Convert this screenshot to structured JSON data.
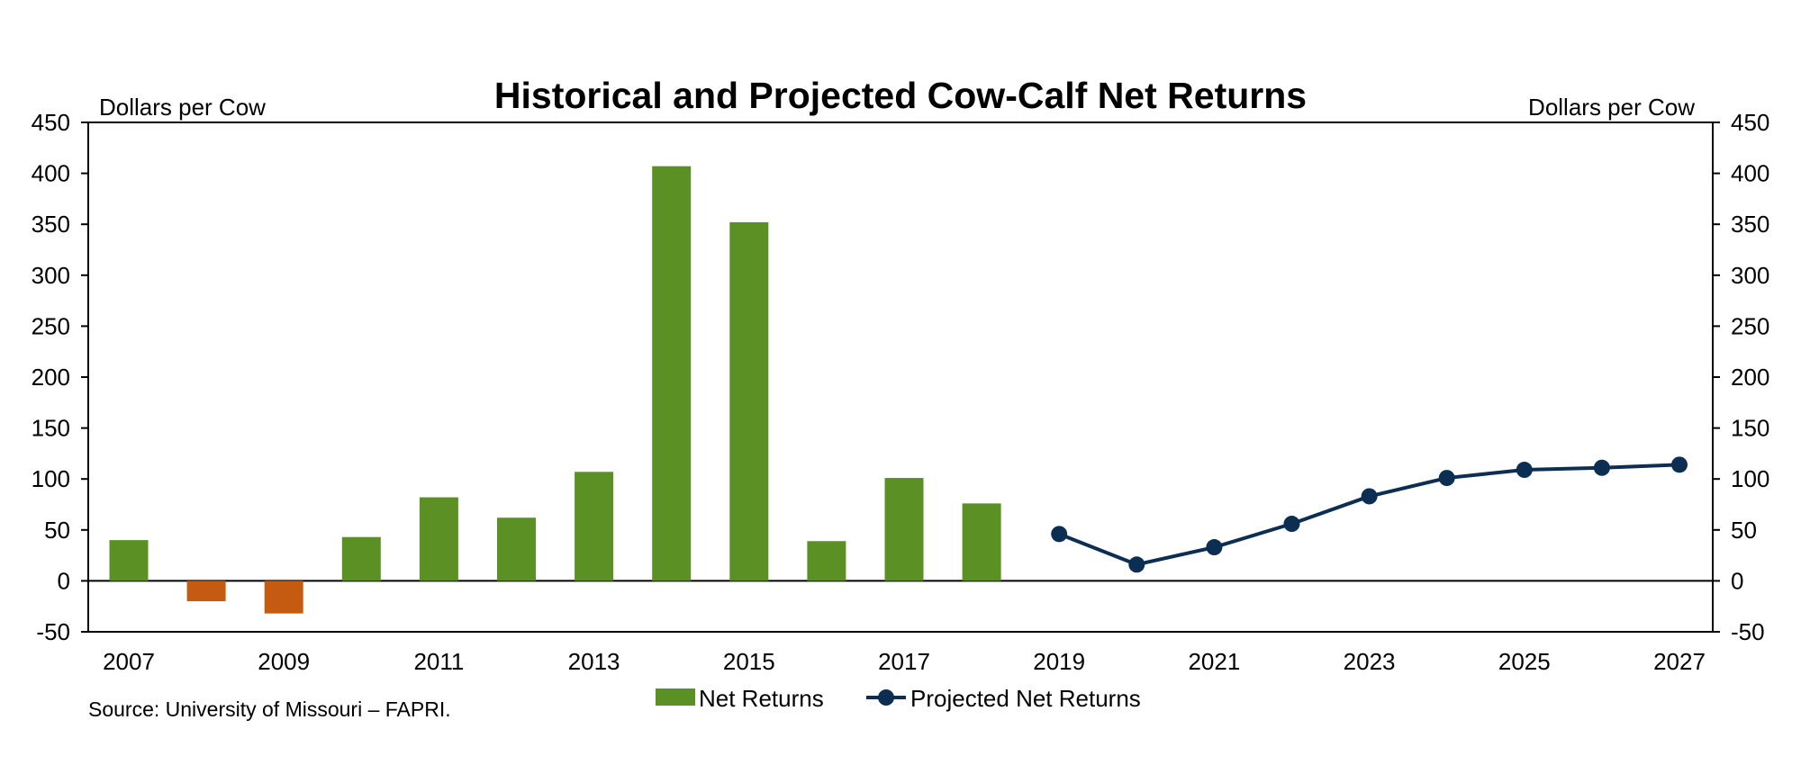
{
  "chart_data": {
    "type": "bar",
    "title": "Historical and Projected Cow-Calf Net Returns",
    "ylabel_left": "Dollars per Cow",
    "ylabel_right": "Dollars per Cow",
    "ylim": [
      -50,
      450
    ],
    "yticks": [
      -50,
      0,
      50,
      100,
      150,
      200,
      250,
      300,
      350,
      400,
      450
    ],
    "xlim": [
      2007,
      2027
    ],
    "xticks": [
      2007,
      2009,
      2011,
      2013,
      2015,
      2017,
      2019,
      2021,
      2023,
      2025,
      2027
    ],
    "grid": false,
    "legend_position": "bottom",
    "colors": {
      "positive_bar": "#5b9025",
      "negative_bar": "#c55a11",
      "projection_line": "#0b2e52"
    },
    "series": [
      {
        "name": "Net Returns",
        "type": "bar",
        "x": [
          2007,
          2008,
          2009,
          2010,
          2011,
          2012,
          2013,
          2014,
          2015,
          2016,
          2017,
          2018
        ],
        "values": [
          40,
          -20,
          -32,
          43,
          82,
          62,
          107,
          407,
          352,
          39,
          101,
          76
        ]
      },
      {
        "name": "Projected Net Returns",
        "type": "line",
        "x": [
          2019,
          2020,
          2021,
          2022,
          2023,
          2024,
          2025,
          2026,
          2027
        ],
        "values": [
          46,
          16,
          33,
          56,
          83,
          101,
          109,
          111,
          114
        ]
      }
    ],
    "source": "Source: University of Missouri – FAPRI."
  }
}
